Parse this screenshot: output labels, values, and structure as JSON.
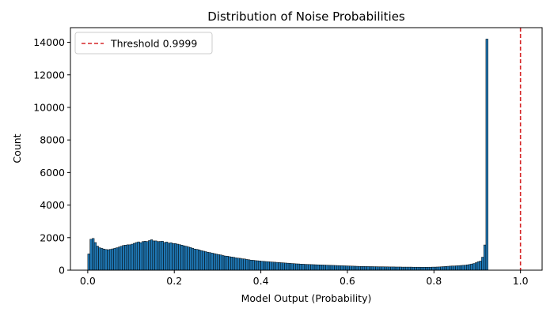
{
  "chart_data": {
    "type": "bar",
    "title": "Distribution of Noise Probabilities",
    "xlabel": "Model Output (Probability)",
    "ylabel": "Count",
    "xlim": [
      -0.04,
      1.05
    ],
    "ylim": [
      0,
      14900
    ],
    "xticks": [
      0.0,
      0.2,
      0.4,
      0.6,
      0.8,
      1.0
    ],
    "xtick_labels": [
      "0.0",
      "0.2",
      "0.4",
      "0.6",
      "0.8",
      "1.0"
    ],
    "yticks": [
      0,
      2000,
      4000,
      6000,
      8000,
      10000,
      12000,
      14000
    ],
    "ytick_labels": [
      "0",
      "2000",
      "4000",
      "6000",
      "8000",
      "10000",
      "12000",
      "14000"
    ],
    "grid": false,
    "bin_start": 0.0,
    "bin_width": 0.005,
    "bar_color": "#1f77b4",
    "edge_color": "#000000",
    "counts": [
      1000,
      1900,
      1950,
      1700,
      1480,
      1380,
      1340,
      1300,
      1270,
      1260,
      1280,
      1310,
      1340,
      1380,
      1420,
      1470,
      1520,
      1540,
      1560,
      1560,
      1600,
      1650,
      1700,
      1740,
      1690,
      1760,
      1780,
      1760,
      1820,
      1870,
      1800,
      1800,
      1760,
      1770,
      1780,
      1700,
      1730,
      1660,
      1690,
      1640,
      1640,
      1600,
      1570,
      1540,
      1500,
      1470,
      1430,
      1390,
      1350,
      1300,
      1280,
      1250,
      1200,
      1170,
      1140,
      1100,
      1080,
      1050,
      1020,
      990,
      960,
      940,
      900,
      870,
      860,
      830,
      810,
      790,
      760,
      740,
      730,
      700,
      690,
      660,
      640,
      620,
      610,
      590,
      580,
      570,
      550,
      540,
      530,
      520,
      510,
      500,
      490,
      480,
      470,
      460,
      450,
      440,
      430,
      420,
      410,
      400,
      390,
      385,
      375,
      370,
      360,
      355,
      350,
      345,
      340,
      335,
      330,
      325,
      320,
      315,
      310,
      305,
      300,
      295,
      290,
      285,
      280,
      275,
      270,
      265,
      260,
      255,
      250,
      245,
      240,
      235,
      230,
      230,
      225,
      225,
      220,
      220,
      215,
      215,
      210,
      210,
      210,
      205,
      205,
      200,
      200,
      200,
      195,
      195,
      195,
      190,
      190,
      190,
      190,
      190,
      185,
      185,
      185,
      185,
      180,
      180,
      180,
      185,
      185,
      190,
      190,
      195,
      200,
      210,
      220,
      230,
      240,
      250,
      260,
      260,
      270,
      280,
      290,
      300,
      310,
      330,
      350,
      380,
      410,
      460,
      520,
      560,
      800,
      1550,
      14200
    ],
    "threshold": {
      "value": 1.0,
      "label": "Threshold 0.9999",
      "color": "#d62728"
    },
    "legend": {
      "placement": "top-left",
      "entries": [
        "Threshold 0.9999"
      ]
    }
  }
}
